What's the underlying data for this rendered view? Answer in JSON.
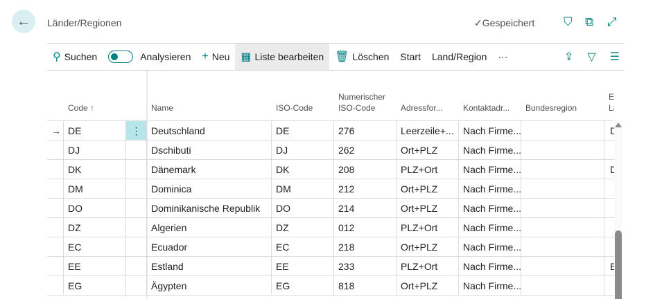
{
  "header": {
    "title": "Länder/Regionen",
    "status": "Gespeichert"
  },
  "toolbar": {
    "search": "Suchen",
    "analyze": "Analysieren",
    "new": "Neu",
    "edit_list": "Liste bearbeiten",
    "delete": "Löschen",
    "start": "Start",
    "land_region": "Land/Region",
    "more": "···"
  },
  "columns": [
    "Code ↑",
    "Name",
    "ISO-Code",
    "Numerischer ISO-Code",
    "Adressfor...",
    "Kontaktadr...",
    "Bundesregion",
    "EU-Länd"
  ],
  "rows": [
    [
      "DE",
      "Deutschland",
      "DE",
      "276",
      "Leerzeile+...",
      "Nach Firme...",
      "",
      "D"
    ],
    [
      "DJ",
      "Dschibuti",
      "DJ",
      "262",
      "Ort+PLZ",
      "Nach Firme...",
      "",
      ""
    ],
    [
      "DK",
      "Dänemark",
      "DK",
      "208",
      "PLZ+Ort",
      "Nach Firme...",
      "",
      "D"
    ],
    [
      "DM",
      "Dominica",
      "DM",
      "212",
      "Ort+PLZ",
      "Nach Firme...",
      "",
      ""
    ],
    [
      "DO",
      "Dominikanische Republik",
      "DO",
      "214",
      "Ort+PLZ",
      "Nach Firme...",
      "",
      ""
    ],
    [
      "DZ",
      "Algerien",
      "DZ",
      "012",
      "PLZ+Ort",
      "Nach Firme...",
      "",
      ""
    ],
    [
      "EC",
      "Ecuador",
      "EC",
      "218",
      "Ort+PLZ",
      "Nach Firme...",
      "",
      ""
    ],
    [
      "EE",
      "Estland",
      "EE",
      "233",
      "PLZ+Ort",
      "Nach Firme...",
      "",
      "E"
    ],
    [
      "EG",
      "Ägypten",
      "EG",
      "818",
      "Ort+PLZ",
      "Nach Firme...",
      "",
      ""
    ]
  ],
  "colors": {
    "accent": "#00807f",
    "selected_cell": "#b4e6ea"
  }
}
